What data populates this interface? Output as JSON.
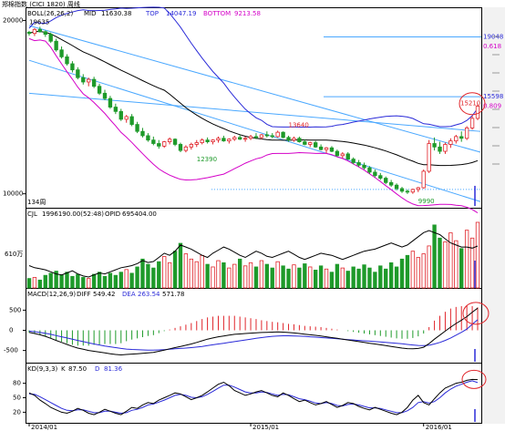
{
  "chart_data": {
    "type": "candlestick",
    "instrument": "郑棉指数 (CICI 1820) 周线",
    "colors": {
      "up": "#e0242a",
      "down": "#1e9a2a",
      "mid": "#000000",
      "top": "#2a2ad8",
      "bottom": "#d400c8",
      "trend": "#4aa8ff",
      "macd_diff": "#000000",
      "macd_dea": "#2a2ad8",
      "kd_k": "#000000",
      "kd_d": "#2a2ad8",
      "highlight": "#e0242a",
      "opid": "#000000"
    },
    "price_panel": {
      "indicator_name": "BOLL(26,26,2)",
      "mid_label": "MID",
      "mid_value": "11630.38",
      "top_label": "TOP",
      "top_value": "14047.19",
      "bottom_label": "BOTTOM",
      "bottom_value": "9213.58",
      "y_ticks": [
        20000,
        10000
      ],
      "annotations": [
        {
          "text": "19635",
          "x": 0,
          "y": 19635
        },
        {
          "text": "13640",
          "x": 48,
          "y": 13640
        },
        {
          "text": "12390",
          "x": 31,
          "y": 12390
        },
        {
          "text": "9990",
          "x": 72,
          "y": 9990
        },
        {
          "text": "134周",
          "x": 0,
          "y": 9400
        }
      ],
      "fib_levels": [
        {
          "label": "19048",
          "value": 19048
        },
        {
          "label": "0.618",
          "value": 18500
        },
        {
          "label": "15598",
          "value": 15598
        },
        {
          "label": "0.809",
          "value": 15050
        },
        {
          "label": "15210",
          "value": 15210
        }
      ],
      "y_range": [
        9300,
        20600
      ],
      "candles": [
        [
          19320,
          19400,
          19120,
          19250
        ],
        [
          19250,
          19560,
          19100,
          19480
        ],
        [
          19480,
          19635,
          19300,
          19350
        ],
        [
          19350,
          19420,
          19050,
          19200
        ],
        [
          19200,
          19300,
          18700,
          18800
        ],
        [
          18800,
          18950,
          18200,
          18300
        ],
        [
          18300,
          18500,
          17800,
          17900
        ],
        [
          17900,
          18050,
          17400,
          17500
        ],
        [
          17500,
          17650,
          17000,
          17150
        ],
        [
          17150,
          17300,
          16600,
          16700
        ],
        [
          16700,
          16900,
          16300,
          16450
        ],
        [
          16450,
          16700,
          16200,
          16600
        ],
        [
          16600,
          16750,
          16100,
          16200
        ],
        [
          16200,
          16350,
          15700,
          15800
        ],
        [
          15800,
          16000,
          15400,
          15500
        ],
        [
          15500,
          15650,
          14900,
          15000
        ],
        [
          15000,
          15200,
          14600,
          14750
        ],
        [
          14750,
          14900,
          14200,
          14300
        ],
        [
          14300,
          14550,
          14100,
          14450
        ],
        [
          14450,
          14600,
          13900,
          14000
        ],
        [
          14000,
          14150,
          13500,
          13600
        ],
        [
          13600,
          13800,
          13250,
          13350
        ],
        [
          13350,
          13500,
          13000,
          13100
        ],
        [
          13100,
          13300,
          12800,
          12900
        ],
        [
          12900,
          13100,
          12600,
          12750
        ],
        [
          12750,
          13050,
          12650,
          13000
        ],
        [
          13000,
          13250,
          12850,
          13150
        ],
        [
          13150,
          13200,
          12750,
          12850
        ],
        [
          12850,
          12950,
          12400,
          12500
        ],
        [
          12500,
          12800,
          12390,
          12700
        ],
        [
          12700,
          12950,
          12550,
          12850
        ],
        [
          12850,
          13100,
          12700,
          12950
        ],
        [
          12950,
          13200,
          12850,
          13100
        ],
        [
          13100,
          13250,
          12900,
          13000
        ],
        [
          13000,
          13150,
          12850,
          13100
        ],
        [
          13100,
          13300,
          12950,
          13200
        ],
        [
          13200,
          13350,
          13000,
          13050
        ],
        [
          13050,
          13200,
          12900,
          13150
        ],
        [
          13150,
          13350,
          13050,
          13250
        ],
        [
          13250,
          13400,
          13100,
          13150
        ],
        [
          13150,
          13300,
          13000,
          13200
        ],
        [
          13200,
          13400,
          13100,
          13300
        ],
        [
          13300,
          13500,
          13150,
          13250
        ],
        [
          13250,
          13450,
          13150,
          13400
        ],
        [
          13400,
          13600,
          13250,
          13350
        ],
        [
          13350,
          13500,
          13200,
          13300
        ],
        [
          13300,
          13640,
          13250,
          13550
        ],
        [
          13550,
          13600,
          13200,
          13250
        ],
        [
          13250,
          13350,
          13000,
          13100
        ],
        [
          13100,
          13300,
          13000,
          13200
        ],
        [
          13200,
          13300,
          12950,
          13000
        ],
        [
          13000,
          13150,
          12800,
          12850
        ],
        [
          12850,
          13000,
          12700,
          12950
        ],
        [
          12950,
          13050,
          12650,
          12700
        ],
        [
          12700,
          12850,
          12500,
          12550
        ],
        [
          12550,
          12700,
          12350,
          12650
        ],
        [
          12650,
          12750,
          12400,
          12450
        ],
        [
          12450,
          12550,
          12150,
          12200
        ],
        [
          12200,
          12400,
          12050,
          12300
        ],
        [
          12300,
          12400,
          11950,
          12000
        ],
        [
          12000,
          12100,
          11700,
          11800
        ],
        [
          11800,
          11950,
          11550,
          11650
        ],
        [
          11650,
          11800,
          11400,
          11500
        ],
        [
          11500,
          11600,
          11150,
          11250
        ],
        [
          11250,
          11400,
          10950,
          11050
        ],
        [
          11050,
          11200,
          10800,
          10900
        ],
        [
          10900,
          11000,
          10550,
          10650
        ],
        [
          10650,
          10800,
          10400,
          10500
        ],
        [
          10500,
          10600,
          10200,
          10300
        ],
        [
          10300,
          10400,
          10050,
          10150
        ],
        [
          10150,
          10250,
          9990,
          10100
        ],
        [
          10100,
          10300,
          10000,
          10250
        ],
        [
          10250,
          10400,
          10100,
          10350
        ],
        [
          10350,
          11400,
          10300,
          11300
        ],
        [
          11300,
          13100,
          11200,
          12900
        ],
        [
          12900,
          13250,
          12500,
          12700
        ],
        [
          12700,
          13000,
          12300,
          12450
        ],
        [
          12450,
          12950,
          12300,
          12850
        ],
        [
          12850,
          13200,
          12650,
          13050
        ],
        [
          13050,
          13400,
          12900,
          13300
        ],
        [
          13300,
          13600,
          13000,
          13200
        ],
        [
          13200,
          13900,
          13100,
          13800
        ],
        [
          13800,
          14500,
          13700,
          14350
        ],
        [
          14350,
          15210,
          14250,
          15050
        ]
      ]
    },
    "volume_panel": {
      "name": "CJL",
      "value_text": "1996190.00(52:48)",
      "opid_label": "OPID",
      "opid_value": "695404.00",
      "y_tick_label": "610万",
      "volume": [
        18,
        20,
        15,
        24,
        28,
        32,
        25,
        30,
        22,
        26,
        20,
        18,
        26,
        30,
        22,
        28,
        24,
        30,
        35,
        28,
        40,
        55,
        45,
        38,
        50,
        60,
        48,
        70,
        85,
        65,
        55,
        50,
        62,
        45,
        40,
        52,
        48,
        38,
        45,
        55,
        42,
        48,
        40,
        52,
        45,
        38,
        50,
        42,
        36,
        44,
        38,
        46,
        40,
        34,
        42,
        36,
        30,
        45,
        38,
        32,
        40,
        36,
        44,
        38,
        30,
        42,
        36,
        48,
        40,
        55,
        62,
        70,
        58,
        65,
        80,
        120,
        95,
        88,
        105,
        90,
        75,
        110,
        95,
        125
      ],
      "opid": [
        600,
        590,
        585,
        580,
        570,
        560,
        555,
        565,
        575,
        560,
        550,
        545,
        555,
        565,
        560,
        570,
        580,
        590,
        595,
        600,
        610,
        625,
        615,
        620,
        640,
        660,
        650,
        670,
        700,
        690,
        680,
        665,
        650,
        640,
        660,
        675,
        690,
        680,
        665,
        650,
        640,
        655,
        670,
        660,
        645,
        640,
        650,
        660,
        670,
        655,
        640,
        630,
        640,
        650,
        660,
        655,
        650,
        640,
        630,
        640,
        650,
        660,
        670,
        675,
        680,
        690,
        700,
        710,
        700,
        690,
        700,
        720,
        740,
        760,
        770,
        760,
        750,
        730,
        710,
        700,
        690,
        690,
        685,
        695
      ]
    },
    "macd_panel": {
      "name": "MACD(12,26,9)",
      "diff_label": "DIFF",
      "diff_value": "549.42",
      "dea_label": "DEA",
      "dea_value": "263.54",
      "macd_value": "571.78",
      "y_ticks": [
        500,
        0,
        -500
      ],
      "y_range": [
        -780,
        780
      ],
      "diff": [
        -50,
        -80,
        -110,
        -150,
        -200,
        -250,
        -300,
        -350,
        -400,
        -440,
        -470,
        -500,
        -520,
        -540,
        -560,
        -580,
        -600,
        -610,
        -600,
        -590,
        -580,
        -570,
        -560,
        -550,
        -520,
        -490,
        -460,
        -430,
        -400,
        -370,
        -340,
        -300,
        -260,
        -220,
        -190,
        -160,
        -140,
        -120,
        -100,
        -90,
        -80,
        -70,
        -60,
        -55,
        -50,
        -45,
        -40,
        -45,
        -55,
        -65,
        -80,
        -95,
        -110,
        -125,
        -140,
        -160,
        -180,
        -200,
        -220,
        -240,
        -260,
        -280,
        -300,
        -320,
        -340,
        -360,
        -380,
        -400,
        -420,
        -440,
        -455,
        -460,
        -450,
        -420,
        -330,
        -220,
        -120,
        -20,
        80,
        170,
        250,
        340,
        450,
        549
      ],
      "dea": [
        -20,
        -35,
        -55,
        -75,
        -100,
        -130,
        -160,
        -190,
        -220,
        -250,
        -280,
        -310,
        -340,
        -365,
        -390,
        -410,
        -430,
        -450,
        -465,
        -475,
        -480,
        -485,
        -490,
        -490,
        -485,
        -480,
        -470,
        -460,
        -450,
        -440,
        -430,
        -415,
        -400,
        -380,
        -360,
        -340,
        -320,
        -300,
        -280,
        -260,
        -240,
        -220,
        -200,
        -180,
        -165,
        -150,
        -140,
        -135,
        -135,
        -140,
        -145,
        -150,
        -160,
        -170,
        -180,
        -190,
        -200,
        -210,
        -220,
        -230,
        -240,
        -250,
        -260,
        -270,
        -280,
        -290,
        -300,
        -310,
        -320,
        -335,
        -350,
        -365,
        -375,
        -380,
        -370,
        -340,
        -300,
        -250,
        -190,
        -120,
        -50,
        30,
        150,
        263
      ]
    },
    "kd_panel": {
      "name": "KD(9,3,3)",
      "k_label": "K",
      "k_value": "87.50",
      "d_label": "D",
      "d_value": "81.36",
      "y_ticks": [
        80,
        50,
        20
      ],
      "y_range": [
        0,
        100
      ],
      "k": [
        60,
        55,
        45,
        38,
        30,
        25,
        20,
        18,
        22,
        28,
        24,
        18,
        15,
        20,
        26,
        22,
        18,
        15,
        22,
        30,
        28,
        35,
        40,
        38,
        45,
        50,
        55,
        60,
        58,
        52,
        46,
        50,
        55,
        62,
        70,
        78,
        82,
        75,
        65,
        60,
        55,
        58,
        62,
        65,
        60,
        55,
        52,
        60,
        55,
        48,
        42,
        45,
        40,
        35,
        38,
        42,
        36,
        30,
        34,
        40,
        38,
        32,
        28,
        25,
        30,
        26,
        22,
        18,
        15,
        20,
        30,
        45,
        55,
        40,
        35,
        48,
        60,
        70,
        75,
        80,
        82,
        86,
        88,
        87.5
      ],
      "d": [
        58,
        57,
        52,
        46,
        40,
        34,
        28,
        24,
        23,
        25,
        25,
        22,
        19,
        19,
        22,
        22,
        20,
        18,
        19,
        24,
        26,
        30,
        35,
        37,
        41,
        45,
        50,
        55,
        57,
        55,
        51,
        50,
        52,
        57,
        63,
        70,
        76,
        76,
        72,
        67,
        62,
        60,
        60,
        62,
        61,
        58,
        55,
        57,
        56,
        52,
        48,
        46,
        43,
        39,
        38,
        40,
        38,
        34,
        33,
        36,
        37,
        35,
        32,
        29,
        29,
        28,
        25,
        22,
        19,
        19,
        23,
        30,
        40,
        42,
        39,
        42,
        50,
        60,
        68,
        74,
        78,
        82,
        85,
        81.36
      ]
    },
    "x_labels": [
      "2014/01",
      "2015/01",
      "2016/01"
    ],
    "x_label_positions": [
      0,
      41,
      73
    ]
  }
}
